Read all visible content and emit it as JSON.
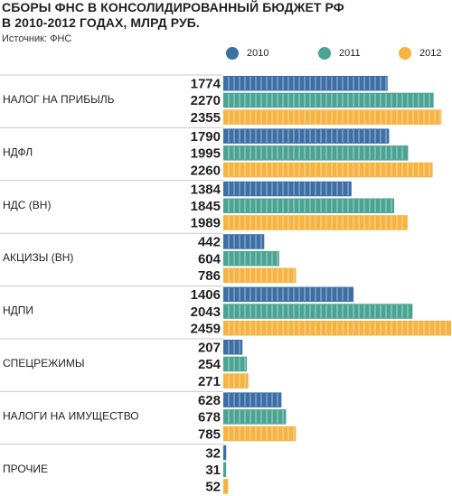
{
  "title_line1": "СБОРЫ ФНС В КОНСОЛИДИРОВАННЫЙ БЮДЖЕТ РФ",
  "title_line2": "В 2010-2012 ГОДАХ, МЛРД РУБ.",
  "source": "Источник: ФНС",
  "colors": {
    "2010": "#3c6fa6",
    "2011": "#4ba493",
    "2012": "#f6b342",
    "separator": "#c8c8c8"
  },
  "chart_data": {
    "type": "bar",
    "orientation": "horizontal",
    "title": "СБОРЫ ФНС В КОНСОЛИДИРОВАННЫЙ БЮДЖЕТ РФ В 2010-2012 ГОДАХ, МЛРД РУБ.",
    "categories": [
      "НАЛОГ НА ПРИБЫЛЬ",
      "НДФЛ",
      "НДС (ВН)",
      "АКЦИЗЫ (ВН)",
      "НДПИ",
      "СПЕЦРЕЖИМЫ",
      "НАЛОГИ НА ИМУЩЕСТВО",
      "ПРОЧИЕ"
    ],
    "series": [
      {
        "name": "2010",
        "values": [
          1774,
          1790,
          1384,
          442,
          1406,
          207,
          628,
          32
        ]
      },
      {
        "name": "2011",
        "values": [
          2270,
          1995,
          1845,
          604,
          2043,
          254,
          678,
          31
        ]
      },
      {
        "name": "2012",
        "values": [
          2355,
          2260,
          1989,
          786,
          2459,
          271,
          785,
          52
        ]
      }
    ],
    "legend_position": "top",
    "grid": false,
    "xlim": [
      0,
      2459
    ]
  }
}
